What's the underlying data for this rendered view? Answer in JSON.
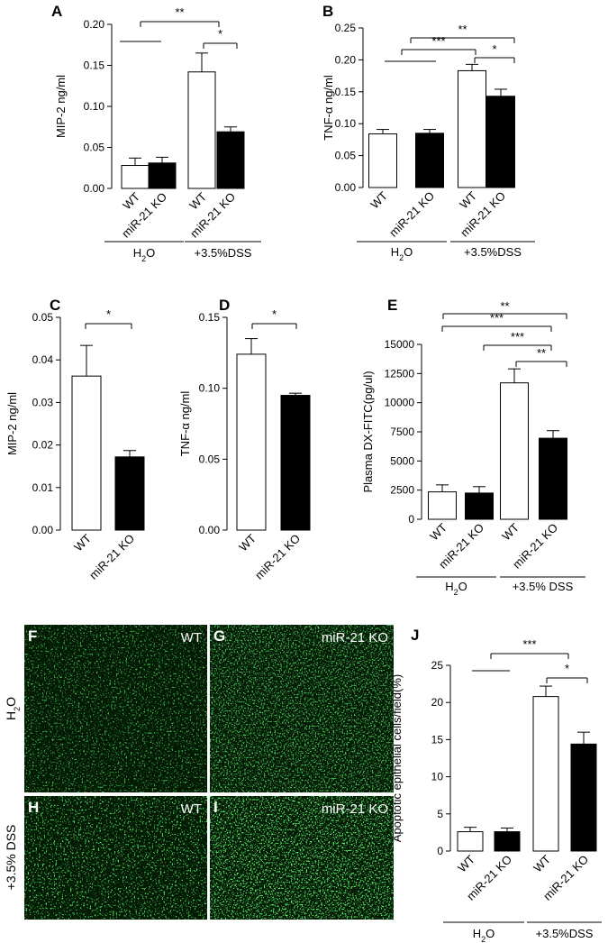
{
  "chart_data": [
    {
      "panel": "A",
      "type": "bar",
      "ylabel": "MIP-2 ng/ml",
      "ylim": [
        0,
        0.2
      ],
      "yticks": [
        "0.00",
        "0.05",
        "0.10",
        "0.15",
        "0.20"
      ],
      "categories": [
        "WT",
        "miR-21 KO",
        "WT",
        "miR-21 KO"
      ],
      "values": [
        0.028,
        0.031,
        0.142,
        0.069
      ],
      "errors": [
        0.009,
        0.007,
        0.023,
        0.006
      ],
      "fills": [
        "#ffffff",
        "#000000",
        "#ffffff",
        "#000000"
      ],
      "groups": [
        {
          "label": "H2O"
        },
        {
          "label": "+3.5%DSS"
        }
      ],
      "significance": [
        {
          "label": "**"
        },
        {
          "label": "*"
        }
      ]
    },
    {
      "panel": "B",
      "type": "bar",
      "ylabel": "TNF-α ng/ml",
      "ylim": [
        0,
        0.25
      ],
      "yticks": [
        "0.00",
        "0.05",
        "0.10",
        "0.15",
        "0.20",
        "0.25"
      ],
      "categories": [
        "WT",
        "miR-21 KO",
        "WT",
        "miR-21 KO"
      ],
      "values": [
        0.084,
        0.085,
        0.183,
        0.143
      ],
      "errors": [
        0.007,
        0.006,
        0.01,
        0.011
      ],
      "fills": [
        "#ffffff",
        "#000000",
        "#ffffff",
        "#000000"
      ],
      "groups": [
        {
          "label": "H2O"
        },
        {
          "label": "+3.5%DSS"
        }
      ],
      "significance": [
        {
          "label": "**"
        },
        {
          "label": "***"
        },
        {
          "label": "*"
        }
      ]
    },
    {
      "panel": "C",
      "type": "bar",
      "ylabel": "MIP-2 ng/ml",
      "ylim": [
        0,
        0.05
      ],
      "yticks": [
        "0.00",
        "0.01",
        "0.02",
        "0.03",
        "0.04",
        "0.05"
      ],
      "categories": [
        "WT",
        "miR-21 KO"
      ],
      "values": [
        0.0362,
        0.0172
      ],
      "errors": [
        0.0072,
        0.0015
      ],
      "fills": [
        "#ffffff",
        "#000000"
      ],
      "significance": [
        {
          "label": "*"
        }
      ]
    },
    {
      "panel": "D",
      "type": "bar",
      "ylabel": "TNF-α ng/ml",
      "ylim": [
        0,
        0.15
      ],
      "yticks": [
        "0.00",
        "0.05",
        "0.10",
        "0.15"
      ],
      "categories": [
        "WT",
        "miR-21 KO"
      ],
      "values": [
        0.124,
        0.095
      ],
      "errors": [
        0.011,
        0.0015
      ],
      "fills": [
        "#ffffff",
        "#000000"
      ],
      "significance": [
        {
          "label": "*"
        }
      ]
    },
    {
      "panel": "E",
      "type": "bar",
      "ylabel": "Plasma DX-FITC(pg/ul)",
      "ylim": [
        0,
        15000
      ],
      "yticks": [
        "0",
        "2500",
        "5000",
        "7500",
        "10000",
        "12500",
        "15000"
      ],
      "categories": [
        "WT",
        "miR-21 KO",
        "WT",
        "miR-21 KO"
      ],
      "values": [
        2350,
        2250,
        11700,
        6950
      ],
      "errors": [
        600,
        550,
        1200,
        650
      ],
      "fills": [
        "#ffffff",
        "#000000",
        "#ffffff",
        "#000000"
      ],
      "groups": [
        {
          "label": "H2O"
        },
        {
          "label": "+3.5% DSS"
        }
      ],
      "significance": [
        {
          "label": "**"
        },
        {
          "label": "***"
        },
        {
          "label": "***"
        },
        {
          "label": "**"
        }
      ]
    },
    {
      "panel": "J",
      "type": "bar",
      "ylabel": "Apoptotic epithelial cells/field(%)",
      "ylim": [
        0,
        25
      ],
      "yticks": [
        "0",
        "5",
        "10",
        "15",
        "20",
        "25"
      ],
      "categories": [
        "WT",
        "miR-21 KO",
        "WT",
        "miR-21 KO"
      ],
      "values": [
        2.6,
        2.6,
        20.8,
        14.4
      ],
      "errors": [
        0.6,
        0.5,
        1.4,
        1.6
      ],
      "fills": [
        "#ffffff",
        "#000000",
        "#ffffff",
        "#000000"
      ],
      "groups": [
        {
          "label": "H2O"
        },
        {
          "label": "+3.5%DSS"
        }
      ],
      "significance": [
        {
          "label": "***"
        },
        {
          "label": "*"
        }
      ]
    }
  ],
  "micrographs": {
    "row_labels": [
      "H2O",
      "+3.5% DSS"
    ],
    "panels": [
      {
        "label": "F",
        "genotype": "WT"
      },
      {
        "label": "G",
        "genotype": "miR-21 KO"
      },
      {
        "label": "H",
        "genotype": "WT"
      },
      {
        "label": "I",
        "genotype": "miR-21 KO"
      }
    ]
  }
}
